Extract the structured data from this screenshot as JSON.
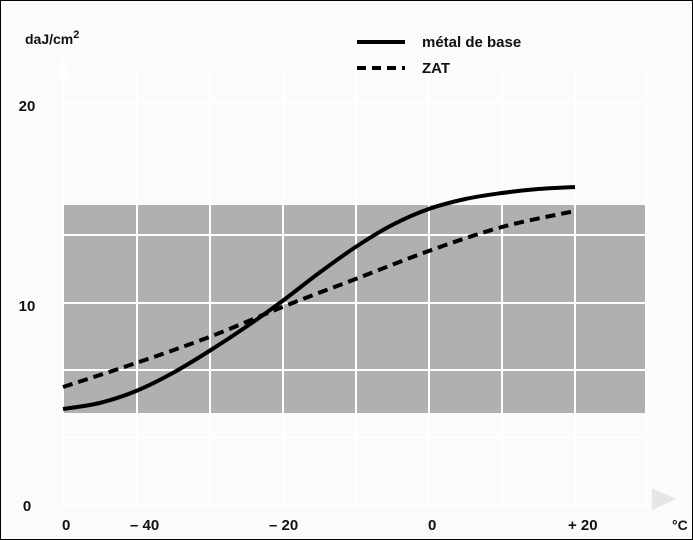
{
  "chart_data": {
    "type": "line",
    "title": "",
    "y_unit_label": "daJ/cm",
    "y_unit_superscript": "2",
    "x_unit_label": "°C",
    "x_ticks": [
      {
        "label": "0"
      },
      {
        "label": "– 40"
      },
      {
        "label": "– 20"
      },
      {
        "label": "0"
      },
      {
        "label": "+ 20"
      }
    ],
    "y_ticks": [
      {
        "label": "20",
        "value": 20
      },
      {
        "label": "10",
        "value": 10
      },
      {
        "label": "0",
        "value": 0
      }
    ],
    "ylim": [
      0,
      20
    ],
    "band": {
      "y_from": 4.6,
      "y_to": 15,
      "color": "#b0b0b0"
    },
    "grid": true,
    "legend": {
      "position": "top-right"
    },
    "series": [
      {
        "name": "métal de base",
        "style": "solid",
        "color": "#000000",
        "points": [
          {
            "x": -50,
            "y": 4.8
          },
          {
            "x": -45,
            "y": 5.1
          },
          {
            "x": -40,
            "y": 5.7
          },
          {
            "x": -35,
            "y": 6.6
          },
          {
            "x": -30,
            "y": 7.7
          },
          {
            "x": -25,
            "y": 8.9
          },
          {
            "x": -20,
            "y": 10.2
          },
          {
            "x": -15,
            "y": 11.6
          },
          {
            "x": -10,
            "y": 12.9
          },
          {
            "x": -5,
            "y": 14.0
          },
          {
            "x": 0,
            "y": 14.8
          },
          {
            "x": 5,
            "y": 15.3
          },
          {
            "x": 10,
            "y": 15.6
          },
          {
            "x": 15,
            "y": 15.8
          },
          {
            "x": 20,
            "y": 15.9
          }
        ]
      },
      {
        "name": "ZAT",
        "style": "dashed",
        "color": "#000000",
        "points": [
          {
            "x": -50,
            "y": 5.9
          },
          {
            "x": -40,
            "y": 7.1
          },
          {
            "x": -30,
            "y": 8.4
          },
          {
            "x": -20,
            "y": 9.9
          },
          {
            "x": -10,
            "y": 11.3
          },
          {
            "x": 0,
            "y": 12.7
          },
          {
            "x": 10,
            "y": 13.9
          },
          {
            "x": 20,
            "y": 14.7
          }
        ]
      }
    ]
  }
}
